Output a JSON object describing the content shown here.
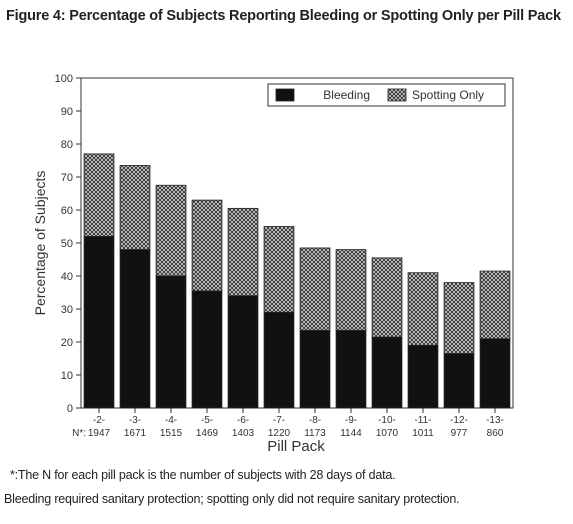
{
  "figure": {
    "title": "Figure 4: Percentage of Subjects Reporting Bleeding or Spotting Only per Pill Pack",
    "footnotes": [
      "*:The N for each pill pack is the number of subjects with 28 days of data.",
      "Bleeding required sanitary protection; spotting only did not require sanitary protection."
    ]
  },
  "chart_data": {
    "type": "bar",
    "stacked": true,
    "title": "",
    "xlabel": "Pill Pack",
    "ylabel": "Percentage of Subjects",
    "ylim": [
      0,
      100
    ],
    "yticks": [
      0,
      10,
      20,
      30,
      40,
      50,
      60,
      70,
      80,
      90,
      100
    ],
    "categories": [
      "-2-",
      "-3-",
      "-4-",
      "-5-",
      "-6-",
      "-7-",
      "-8-",
      "-9-",
      "-10-",
      "-11-",
      "-12-",
      "-13-"
    ],
    "n_label": "N*:",
    "n_values": [
      "1947",
      "1671",
      "1515",
      "1469",
      "1403",
      "1220",
      "1173",
      "1144",
      "1070",
      "1011",
      "977",
      "860"
    ],
    "series": [
      {
        "name": "Bleeding",
        "pattern": "solid",
        "color": "#111111",
        "values": [
          52,
          48,
          40,
          35.5,
          34,
          29,
          23.5,
          23.5,
          21.5,
          19,
          16.5,
          21
        ]
      },
      {
        "name": "Spotting Only",
        "pattern": "crosshatch",
        "color": "#666666",
        "values": [
          25,
          25.5,
          27.5,
          27.5,
          26.5,
          26,
          25,
          24.5,
          24,
          22,
          21.5,
          20.5
        ]
      }
    ],
    "legend": "top-right",
    "grid": false
  }
}
